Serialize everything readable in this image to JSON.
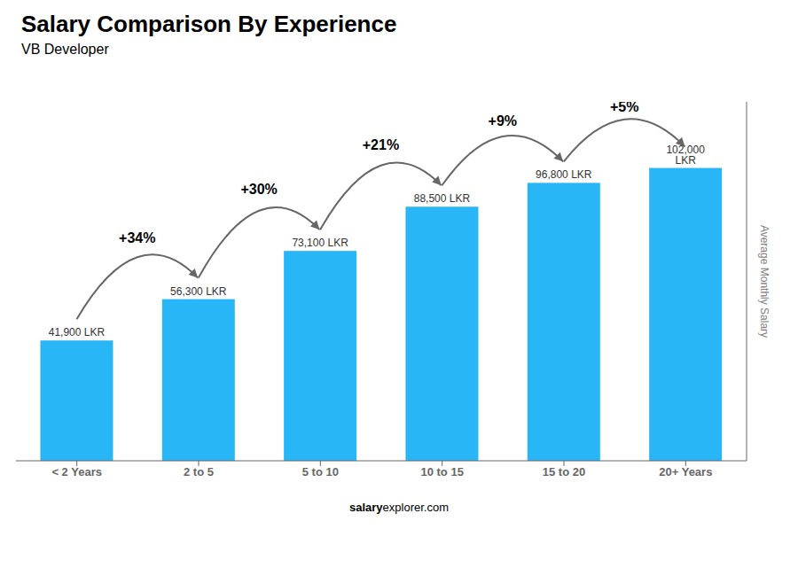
{
  "chart_data": {
    "type": "bar",
    "title": "Salary Comparison By Experience",
    "subtitle": "VB Developer",
    "categories": [
      "< 2 Years",
      "2 to 5",
      "5 to 10",
      "10 to 15",
      "15 to 20",
      "20+ Years"
    ],
    "values": [
      41900,
      56300,
      73100,
      88500,
      96800,
      102000
    ],
    "value_labels": [
      "41,900 LKR",
      "56,300 LKR",
      "73,100 LKR",
      "88,500 LKR",
      "96,800 LKR",
      "102,000 LKR"
    ],
    "data_labels": true,
    "color": "#29b6f6",
    "y_label": "Average Monthly Salary",
    "ylim": [
      0,
      125000
    ],
    "tick_labels": "x",
    "grid": false,
    "annotations": [
      "+34%",
      "+30%",
      "+21%",
      "+9%",
      "+5%"
    ],
    "footer": [
      "salary",
      "explorer.com"
    ]
  }
}
